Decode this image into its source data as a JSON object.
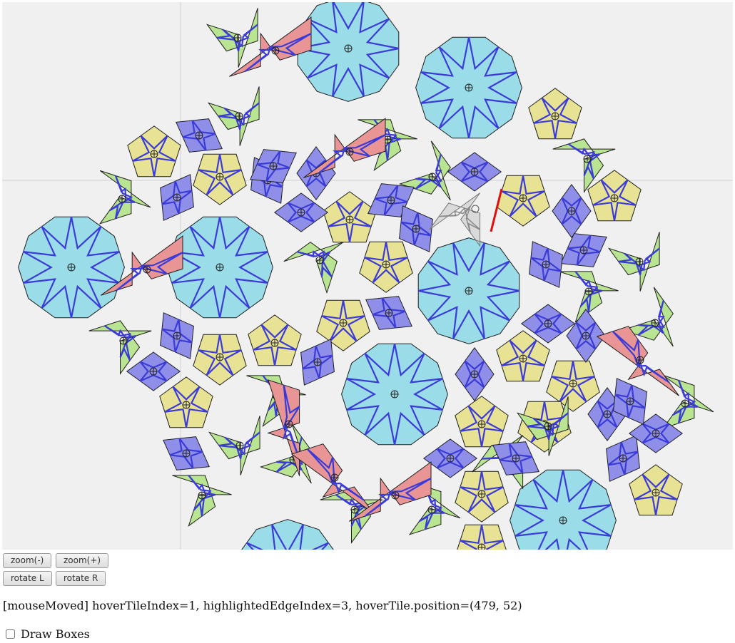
{
  "controls": {
    "zoom_out_label": "zoom(-)",
    "zoom_in_label": "zoom(+)",
    "rotate_left_label": "rotate L",
    "rotate_right_label": "rotate R"
  },
  "status": {
    "text": "[mouseMoved] hoverTileIndex=1, highlightedEdgeIndex=3, hoverTile.position=(479, 52)"
  },
  "options": {
    "draw_boxes_label": "Draw Boxes",
    "draw_boxes_checked": false
  },
  "colors": {
    "canvas_bg": "#f0f0f0",
    "guide_line": "#d2d2d2",
    "decagon": "#9adce8",
    "pentagon": "#e8e294",
    "hexagon": "#b9e491",
    "rhombus": "#8f8fea",
    "bowtie": "#e99595",
    "tile_stroke": "#1e1e1e",
    "strapwork": "#3b3bd8",
    "highlight_edge": "#e01010",
    "hover_fill": "#c8c8c8"
  }
}
